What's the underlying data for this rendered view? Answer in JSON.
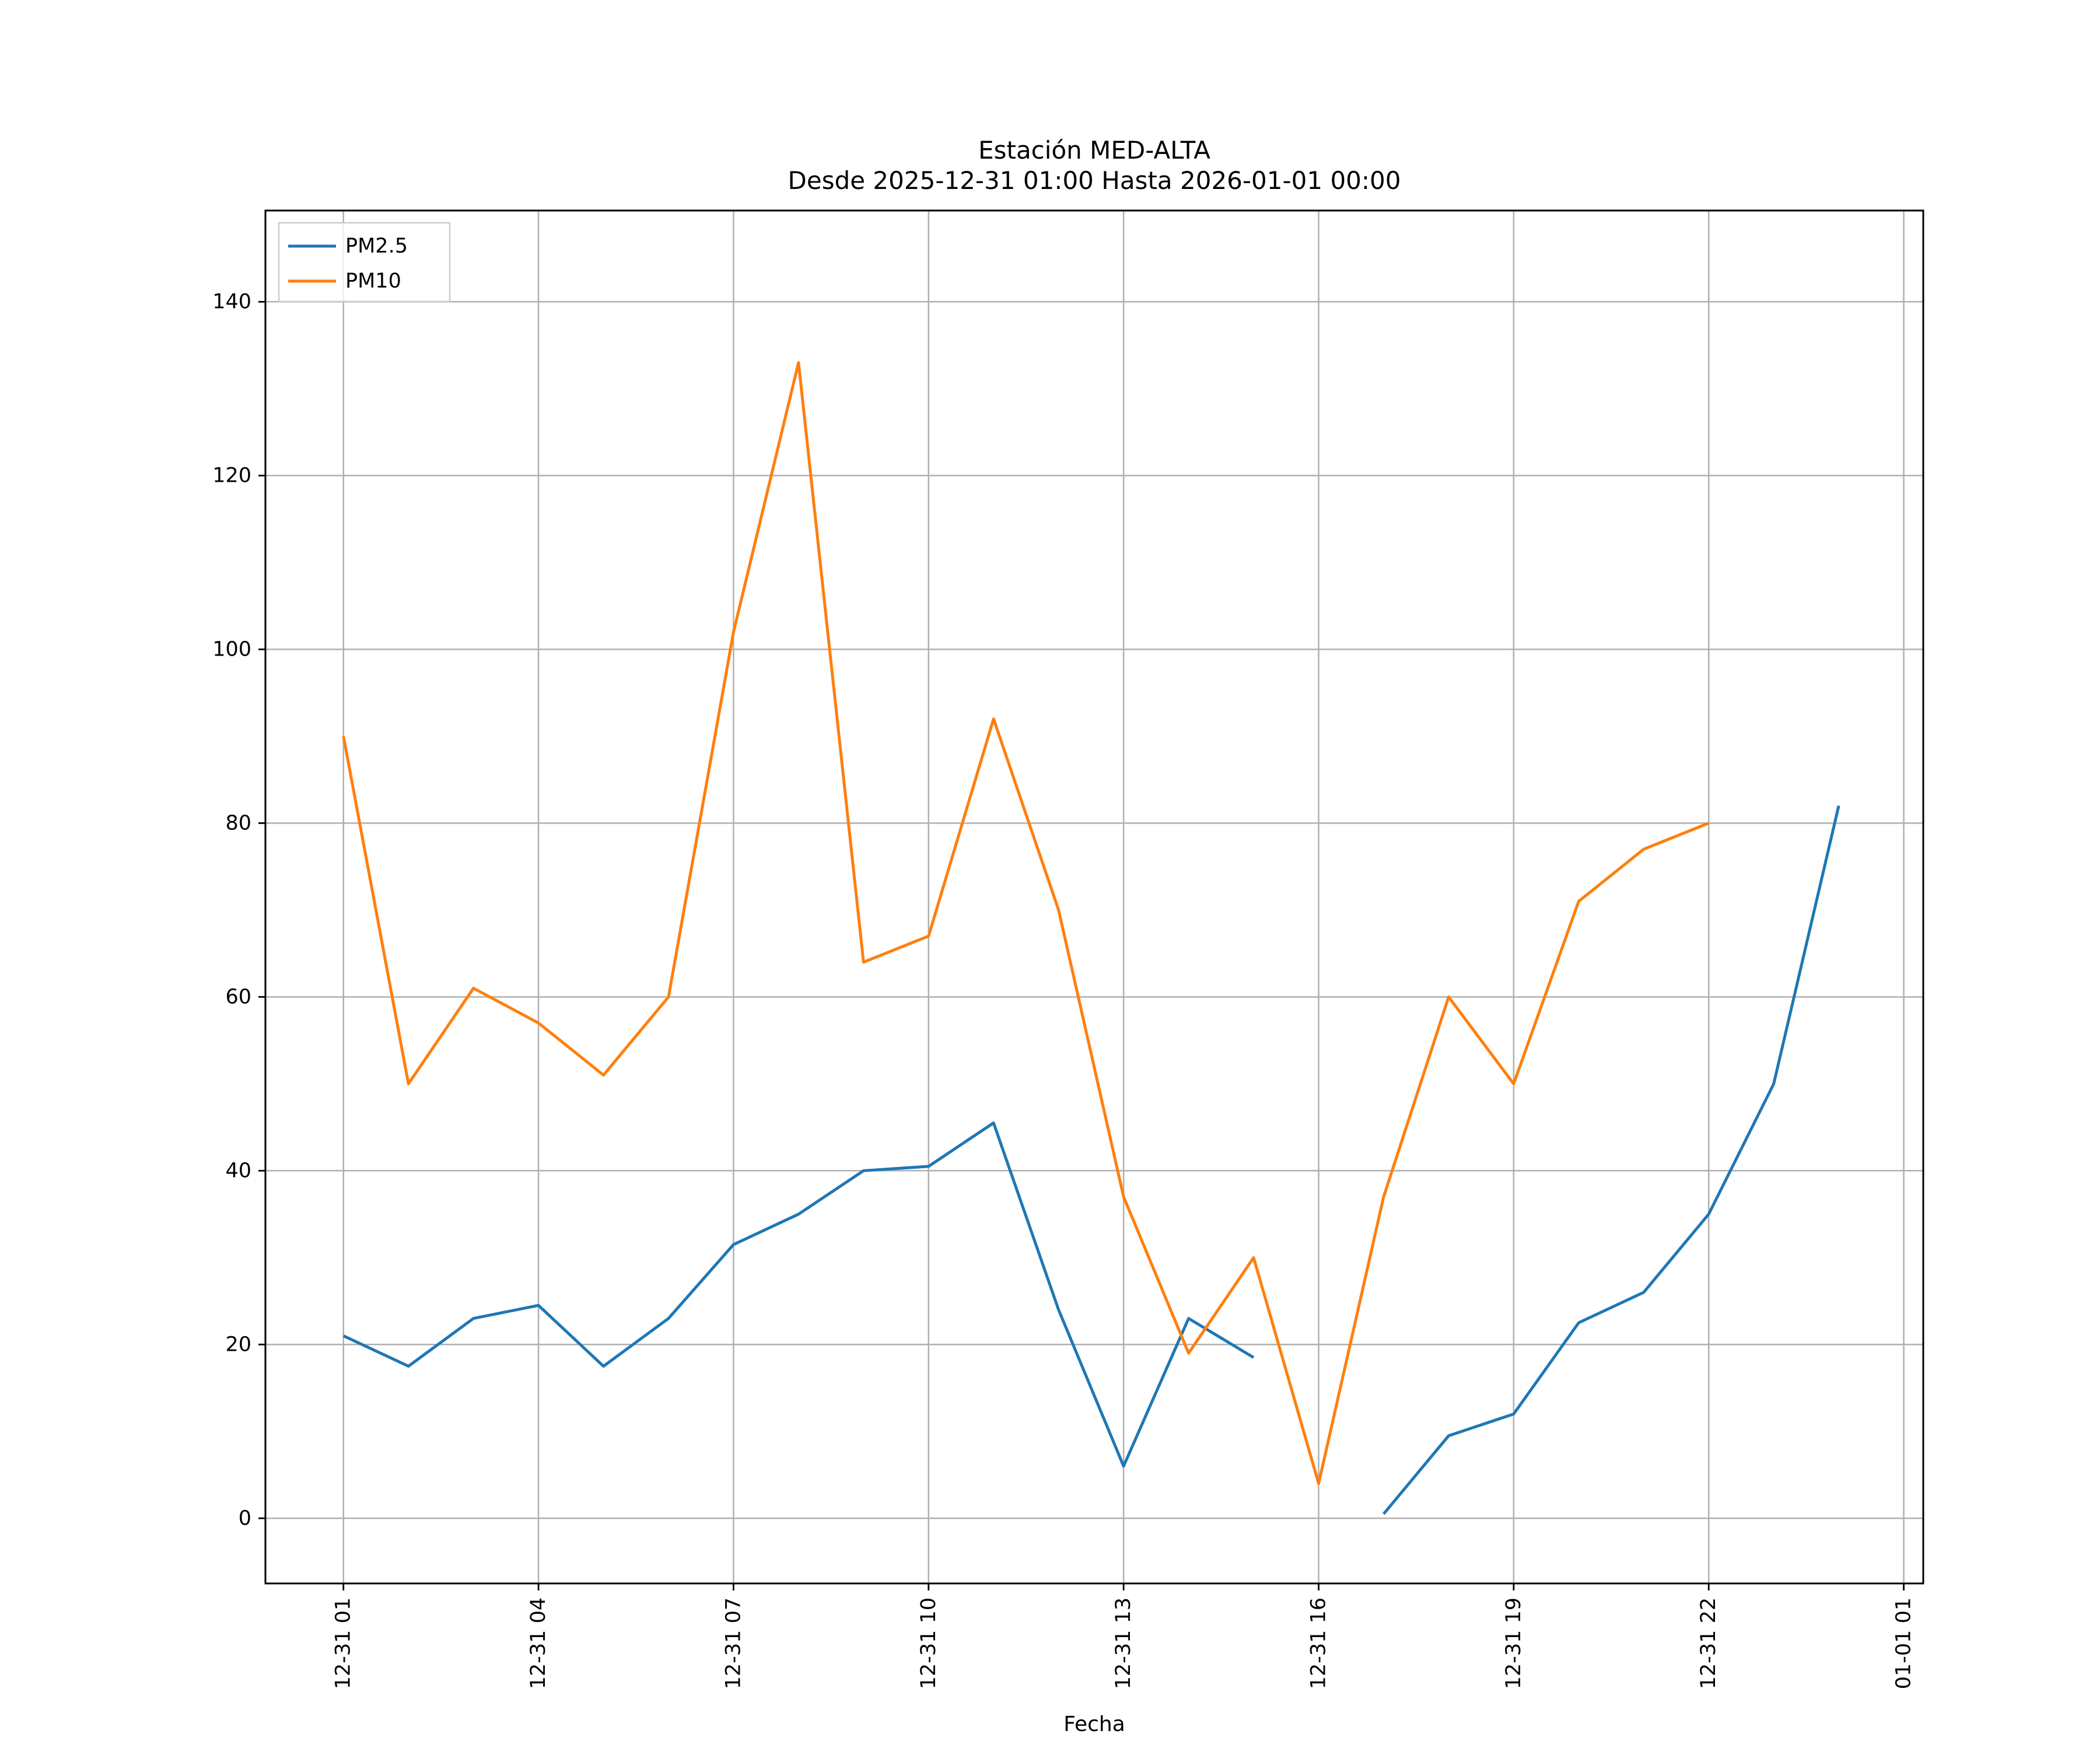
{
  "chart_data": {
    "type": "line",
    "title": "Estación MED-ALTA",
    "subtitle": "Desde 2025-12-31 01:00 Hasta 2026-01-01 00:00",
    "xlabel": "Fecha",
    "ylabel": "",
    "grid": true,
    "grid_color": "#b0b0b0",
    "legend_position": "upper left",
    "xlim": [
      -0.2,
      25.3
    ],
    "ylim": [
      -7.5,
      150.5
    ],
    "x_hours": [
      1,
      2,
      3,
      4,
      5,
      6,
      7,
      8,
      9,
      10,
      11,
      12,
      13,
      14,
      15,
      16,
      17,
      18,
      19,
      20,
      21,
      22,
      23,
      24
    ],
    "x_tick_hours": [
      1,
      4,
      7,
      10,
      13,
      16,
      19,
      22,
      25
    ],
    "x_tick_labels": [
      "12-31 01",
      "12-31 04",
      "12-31 07",
      "12-31 10",
      "12-31 13",
      "12-31 16",
      "12-31 19",
      "12-31 22",
      "01-01 01"
    ],
    "y_ticks": [
      0,
      20,
      40,
      60,
      80,
      100,
      120,
      140
    ],
    "series": [
      {
        "name": "PM2.5",
        "color": "#1f77b4",
        "values": [
          21,
          17.5,
          23,
          24.5,
          17.5,
          23,
          31.5,
          35,
          40,
          40.5,
          45.5,
          24,
          6,
          23,
          18.5,
          null,
          0.5,
          9.5,
          12,
          22.5,
          26,
          35,
          50,
          82
        ]
      },
      {
        "name": "PM10",
        "color": "#ff7f0e",
        "values": [
          90,
          50,
          61,
          57,
          51,
          60,
          102,
          133,
          64,
          67,
          92,
          70,
          37,
          19,
          30,
          4,
          37,
          60,
          50,
          71,
          77,
          80,
          null,
          null
        ]
      }
    ]
  }
}
